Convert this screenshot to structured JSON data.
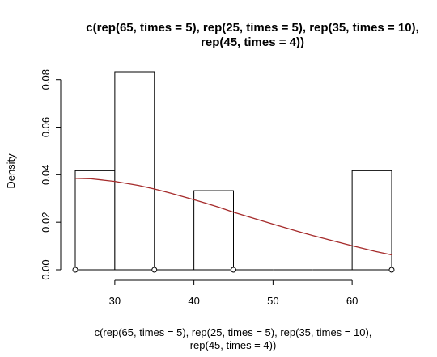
{
  "chart_data": {
    "type": "bar",
    "title_lines": [
      "c(rep(65, times = 5), rep(25, times = 5), rep(35, times = 10),",
      "rep(45, times = 4))"
    ],
    "xlabel_lines": [
      "c(rep(65, times = 5), rep(25, times = 5), rep(35, times = 10),",
      "rep(45, times = 4))"
    ],
    "ylabel": "Density",
    "xlim": [
      25,
      65
    ],
    "ylim": [
      0,
      0.085
    ],
    "x_ticks": [
      30,
      40,
      50,
      60
    ],
    "y_ticks": [
      0.0,
      0.02,
      0.04,
      0.06,
      0.08
    ],
    "y_tick_labels": [
      "0.00",
      "0.02",
      "0.04",
      "0.06",
      "0.08"
    ],
    "bins": [
      {
        "start": 25,
        "end": 30,
        "density": 0.0417
      },
      {
        "start": 30,
        "end": 35,
        "density": 0.0833
      },
      {
        "start": 35,
        "end": 40,
        "density": 0
      },
      {
        "start": 40,
        "end": 45,
        "density": 0.0333
      },
      {
        "start": 45,
        "end": 50,
        "density": 0
      },
      {
        "start": 50,
        "end": 55,
        "density": 0
      },
      {
        "start": 55,
        "end": 60,
        "density": 0
      },
      {
        "start": 60,
        "end": 65,
        "density": 0.0417
      }
    ],
    "density_curve": {
      "color": "#a52a2a",
      "x": [
        25,
        27,
        30,
        33,
        35,
        37,
        40,
        43,
        45,
        48,
        50,
        53,
        55,
        58,
        60,
        63,
        65
      ],
      "y": [
        0.0385,
        0.0383,
        0.0372,
        0.0355,
        0.034,
        0.0323,
        0.0295,
        0.0265,
        0.0242,
        0.0212,
        0.0192,
        0.0163,
        0.0144,
        0.0118,
        0.0101,
        0.0077,
        0.0063
      ]
    },
    "points": [
      25,
      35,
      45,
      65
    ],
    "bar_fill": "#ffffff",
    "bar_stroke": "#000000"
  }
}
